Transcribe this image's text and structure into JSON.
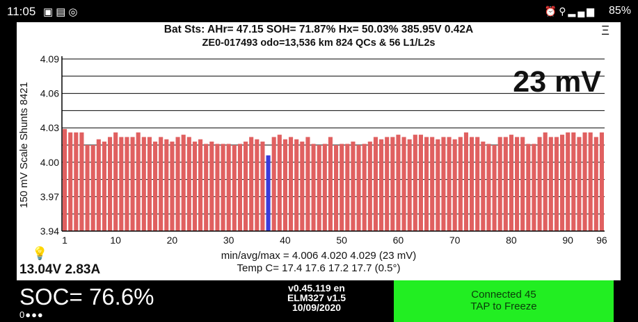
{
  "status_bar": {
    "time": "11:05",
    "left_icons": [
      "image-icon",
      "keyboard-icon",
      "whatsapp-icon"
    ],
    "right_icons": [
      "alarm-icon",
      "location-icon",
      "signal-icon"
    ],
    "battery": "85%"
  },
  "header": {
    "line1": "Bat Sts:  AHr= 47.15  SOH= 71.87%   Hx= 50.03%   385.95V 0.42A",
    "line2": "ZE0-017493 odo=13,536 km  824 QCs & 56 L1/L2s",
    "menu": "Ξ"
  },
  "big_reading": "23 mV",
  "chart_data": {
    "type": "bar",
    "ylabel": "150 mV Scale   Shunts 8421",
    "ylim": [
      3.94,
      4.09
    ],
    "yticks": [
      "4.09",
      "4.06",
      "4.03",
      "4.00",
      "3.97",
      "3.94"
    ],
    "xticks": [
      "1",
      "10",
      "20",
      "30",
      "40",
      "50",
      "60",
      "70",
      "80",
      "90",
      "96"
    ],
    "bar_color": "#e06060",
    "min_color": "#3b3bdb",
    "highlight_index": 37,
    "values": [
      4.029,
      4.026,
      4.026,
      4.026,
      4.015,
      4.015,
      4.02,
      4.018,
      4.022,
      4.026,
      4.022,
      4.022,
      4.022,
      4.026,
      4.022,
      4.022,
      4.018,
      4.022,
      4.02,
      4.018,
      4.022,
      4.024,
      4.022,
      4.018,
      4.02,
      4.016,
      4.018,
      4.016,
      4.016,
      4.016,
      4.015,
      4.016,
      4.018,
      4.022,
      4.02,
      4.018,
      4.006,
      4.022,
      4.024,
      4.02,
      4.022,
      4.02,
      4.018,
      4.022,
      4.016,
      4.015,
      4.016,
      4.022,
      4.015,
      4.016,
      4.016,
      4.018,
      4.015,
      4.016,
      4.018,
      4.022,
      4.02,
      4.022,
      4.022,
      4.024,
      4.022,
      4.02,
      4.024,
      4.024,
      4.022,
      4.022,
      4.02,
      4.022,
      4.022,
      4.02,
      4.022,
      4.026,
      4.022,
      4.022,
      4.018,
      4.016,
      4.015,
      4.022,
      4.022,
      4.024,
      4.022,
      4.022,
      4.016,
      4.016,
      4.022,
      4.026,
      4.022,
      4.022,
      4.024,
      4.026,
      4.026,
      4.022,
      4.026,
      4.026,
      4.022,
      4.026
    ]
  },
  "stats": {
    "line1": "min/avg/max = 4.006  4.020  4.029   (23 mV)",
    "line2": "Temp C= 17.4  17.6  17.2  17.7  (0.5°)"
  },
  "voltage_current": "13.04V 2.83A",
  "soc": "SOC= 76.6%",
  "dots": "0●●●",
  "version": {
    "line1": "v0.45.119 en",
    "line2": "ELM327 v1.5",
    "line3": "10/09/2020"
  },
  "connect_button": {
    "line1": "Connected 45",
    "line2": "TAP to Freeze"
  }
}
